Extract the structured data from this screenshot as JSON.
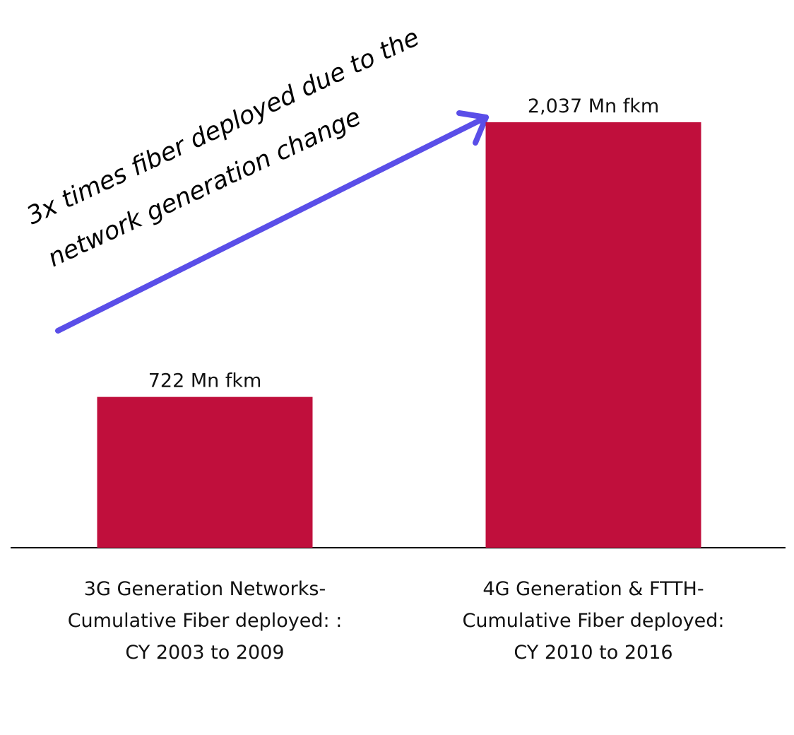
{
  "chart_data": {
    "type": "bar",
    "categories": [
      [
        "3G Generation Networks-",
        "Cumulative Fiber deployed: :",
        "CY 2003 to 2009"
      ],
      [
        "4G Generation & FTTH-",
        "Cumulative Fiber deployed:",
        "CY 2010 to 2016"
      ]
    ],
    "values": [
      722,
      2037
    ],
    "value_labels": [
      "722 Mn fkm",
      "2,037 Mn fkm"
    ],
    "color": "#c00f3c",
    "annotation": [
      "3x times fiber deployed due to the",
      "network generation change"
    ],
    "arrow_color": "#5a4ee8"
  }
}
